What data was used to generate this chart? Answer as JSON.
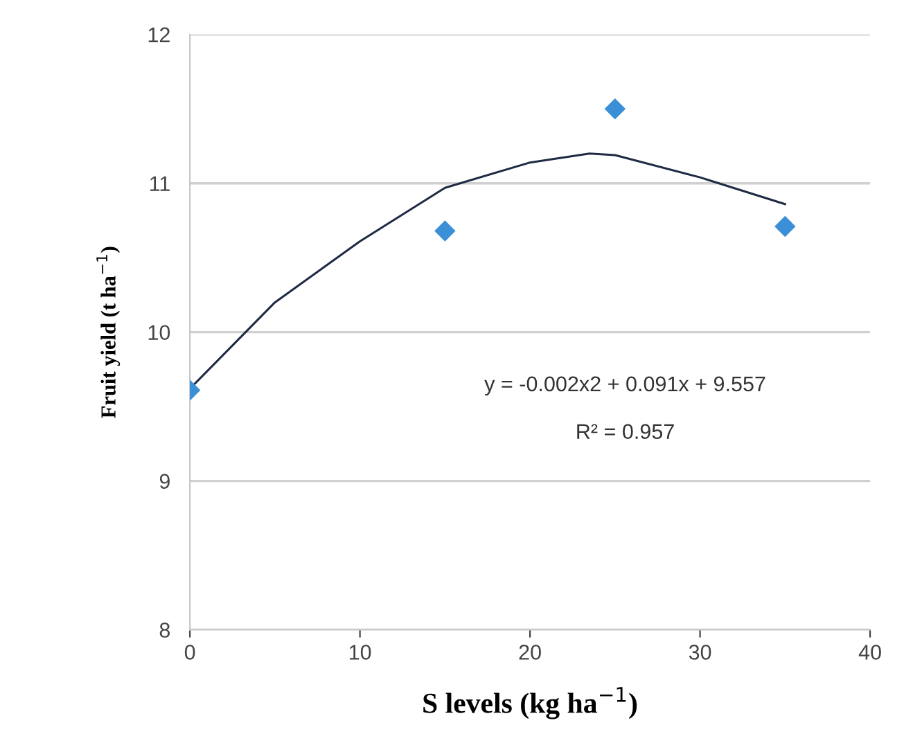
{
  "chart_data": {
    "type": "scatter",
    "xlabel": "S levels (kg ha$^{−1}$)",
    "ylabel": "Fruit yield (t ha$^{−1}$)",
    "series": [
      {
        "color": "#3a8fd6",
        "marker": "diamond",
        "x": [
          0,
          15,
          25,
          35
        ],
        "values": [
          9.61,
          10.68,
          11.5,
          10.71
        ]
      },
      {
        "type": "line",
        "color": "#1f2a44",
        "marker": "none",
        "x": [
          0,
          5,
          10,
          15,
          20,
          23.5,
          25,
          30,
          35
        ],
        "values": [
          9.62,
          10.2,
          10.61,
          10.97,
          11.14,
          11.2,
          11.19,
          11.04,
          10.86
        ]
      }
    ],
    "annotations": [
      "y = -0.002x2 + 0.091x + 9.557",
      "R² = 0.957"
    ],
    "xlim": [
      0,
      40
    ],
    "xticks": [
      0,
      10,
      20,
      30,
      40
    ],
    "ylim": [
      8,
      12
    ],
    "yticks": [
      8,
      9,
      10,
      11,
      12
    ],
    "grid": "y"
  }
}
